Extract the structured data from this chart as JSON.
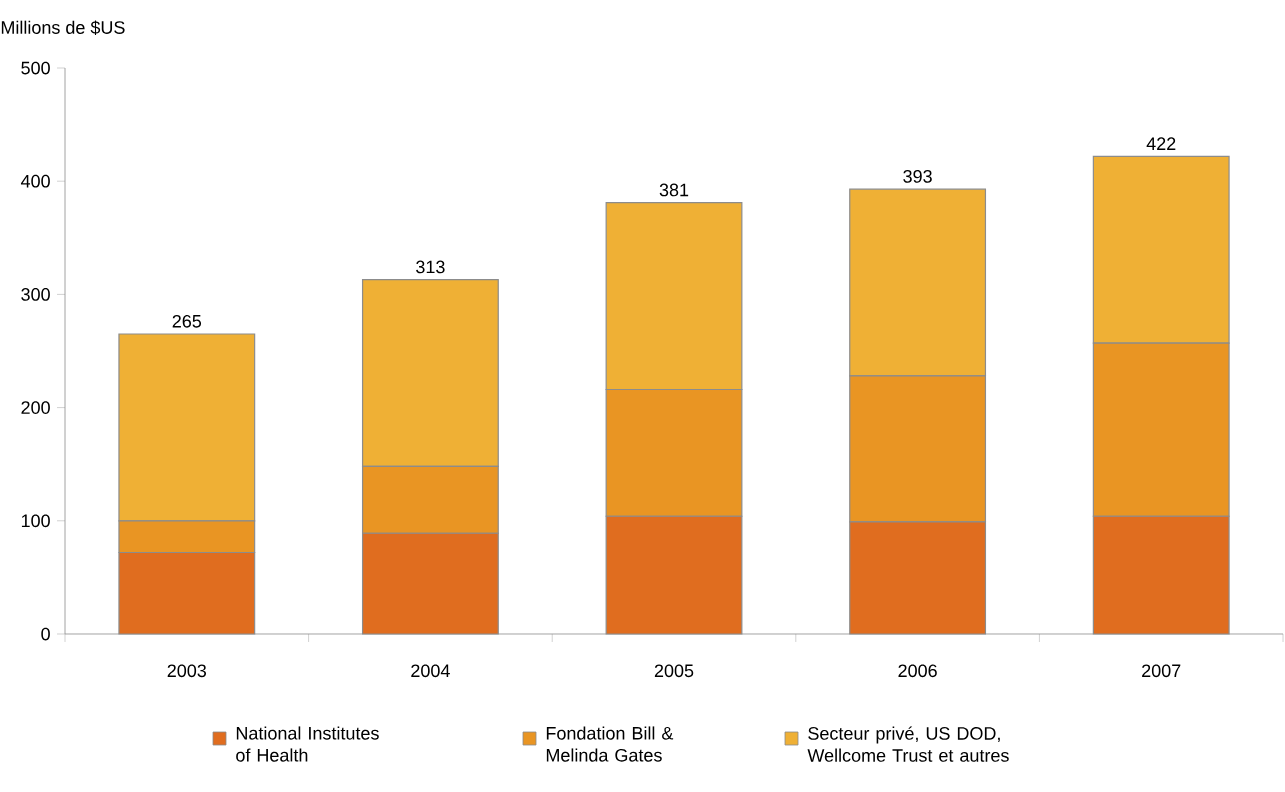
{
  "chart_data": {
    "type": "bar",
    "stacked": true,
    "ylabel": "Millions de $US",
    "categories": [
      "2003",
      "2004",
      "2005",
      "2006",
      "2007"
    ],
    "series": [
      {
        "name": "National Institutes of Health",
        "color": "#e06d1f",
        "values": [
          72,
          89,
          104,
          99,
          104
        ]
      },
      {
        "name": "Fondation Bill & Melinda Gates",
        "color": "#e99523",
        "values": [
          28,
          59,
          112,
          129,
          153
        ]
      },
      {
        "name": "Secteur privé, US DOD, Wellcome Trust et autres",
        "color": "#efb035",
        "values": [
          165,
          165,
          165,
          165,
          165
        ]
      }
    ],
    "totals": [
      "265",
      "313",
      "381",
      "393",
      "422"
    ],
    "ylim": [
      0,
      500
    ],
    "yticks": [
      0,
      100,
      200,
      300,
      400,
      500
    ],
    "legend": "bottom"
  }
}
